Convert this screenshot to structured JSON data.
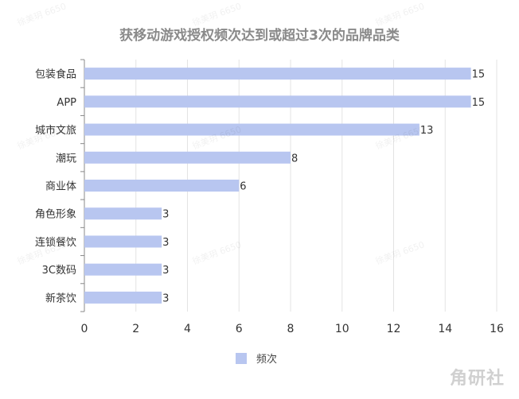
{
  "colors": {
    "bar": "#b8c6f0",
    "axis": "#888888",
    "grid": "#e3e3e3",
    "text": "#333333"
  },
  "watermark": "徐美玥 6650",
  "brand_logo": "角研社",
  "chart_data": {
    "type": "bar",
    "orientation": "horizontal",
    "title": "获移动游戏授权频次达到或超过3次的品牌品类",
    "categories": [
      "包装食品",
      "APP",
      "城市文旅",
      "潮玩",
      "商业体",
      "角色形象",
      "连锁餐饮",
      "3C数码",
      "新茶饮"
    ],
    "series": [
      {
        "name": "频次",
        "values": [
          15,
          15,
          13,
          8,
          6,
          3,
          3,
          3,
          3
        ]
      }
    ],
    "xlim": [
      0,
      16
    ],
    "xticks": [
      0,
      2,
      4,
      6,
      8,
      10,
      12,
      14,
      16
    ],
    "grid": true,
    "legend": "bottom-center"
  }
}
